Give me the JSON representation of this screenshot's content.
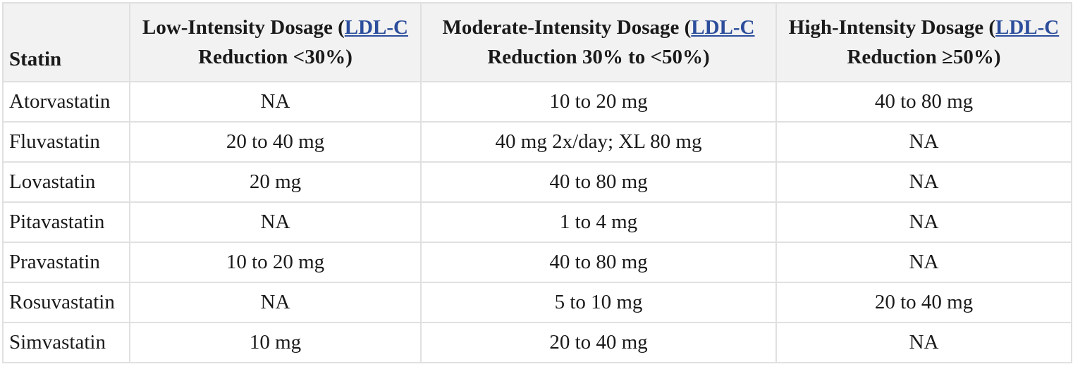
{
  "header": {
    "statin": "Statin",
    "low": {
      "prefix": "Low-Intensity Dosage (",
      "link": "LDL-C",
      "suffix": " Reduction <30%)"
    },
    "moderate": {
      "prefix": "Moderate-Intensity Dosage (",
      "link": "LDL-C",
      "suffix": " Reduction 30% to <50%)"
    },
    "high": {
      "prefix": "High-Intensity Dosage (",
      "link": "LDL-C",
      "suffix": " Reduction ≥50%)"
    }
  },
  "rows": [
    {
      "statin": "Atorvastatin",
      "low": "NA",
      "moderate": "10 to 20 mg",
      "high": "40 to 80 mg"
    },
    {
      "statin": "Fluvastatin",
      "low": "20 to 40 mg",
      "moderate": "40 mg 2x/day; XL 80 mg",
      "high": "NA"
    },
    {
      "statin": "Lovastatin",
      "low": "20 mg",
      "moderate": "40 to 80 mg",
      "high": "NA"
    },
    {
      "statin": "Pitavastatin",
      "low": "NA",
      "moderate": "1 to 4 mg",
      "high": "NA"
    },
    {
      "statin": "Pravastatin",
      "low": "10 to 20 mg",
      "moderate": "40 to 80 mg",
      "high": "NA"
    },
    {
      "statin": "Rosuvastatin",
      "low": "NA",
      "moderate": "5 to 10 mg",
      "high": "20 to 40 mg"
    },
    {
      "statin": "Simvastatin",
      "low": "10 mg",
      "moderate": "20 to 40 mg",
      "high": "NA"
    }
  ],
  "colors": {
    "link": "#2b4d9b",
    "header_bg": "#f2f2f2",
    "border": "#e0e0e0"
  }
}
